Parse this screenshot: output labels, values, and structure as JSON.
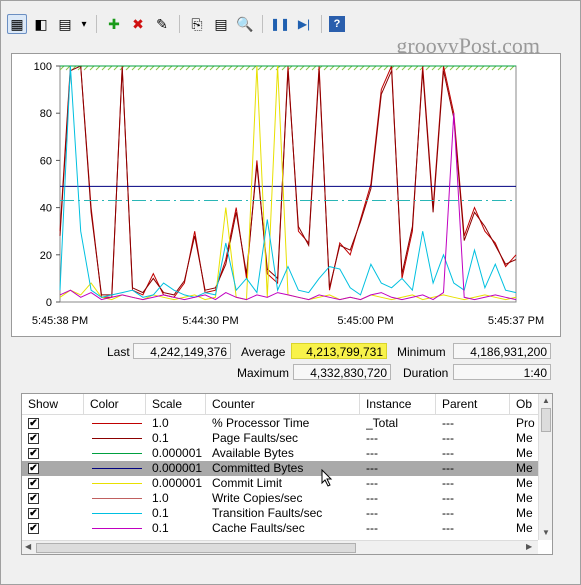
{
  "watermark": "groovyPost.com",
  "toolbar": {
    "buttons": [
      {
        "name": "view-graph-icon",
        "glyph": "▦"
      },
      {
        "name": "freeze-display-icon",
        "glyph": "◧"
      },
      {
        "name": "change-graph-type-icon",
        "glyph": "▤"
      },
      {
        "name": "dropdown-arrow-icon",
        "glyph": "▾"
      },
      {
        "name": "add-counter-icon",
        "glyph": "✚"
      },
      {
        "name": "delete-counter-icon",
        "glyph": "✖"
      },
      {
        "name": "highlight-icon",
        "glyph": "✎"
      },
      {
        "name": "copy-properties-icon",
        "glyph": "⎘"
      },
      {
        "name": "paste-counter-list-icon",
        "glyph": "▤"
      },
      {
        "name": "zoom-icon",
        "glyph": "🔍"
      },
      {
        "name": "pause-icon",
        "glyph": "❚❚"
      },
      {
        "name": "update-data-icon",
        "glyph": "▶|"
      },
      {
        "name": "help-icon",
        "glyph": "?"
      }
    ]
  },
  "chart_data": {
    "type": "line",
    "x_tick_labels": [
      "5:45:38 PM",
      "5:44:30 PM",
      "5:45:00 PM",
      "5:45:37 PM"
    ],
    "y_tick_labels": [
      "100",
      "80",
      "60",
      "40",
      "20",
      "0"
    ],
    "ylim": [
      0,
      100
    ],
    "series": [
      {
        "color": "#c00000",
        "values": [
          30,
          100,
          100,
          40,
          2,
          2,
          100,
          5,
          3,
          12,
          3,
          2,
          8,
          30,
          4,
          5,
          18,
          40,
          10,
          60,
          12,
          8,
          100,
          30,
          25,
          100,
          5,
          25,
          20,
          35,
          50,
          90,
          100,
          10,
          30,
          100,
          40,
          100,
          80,
          28,
          40,
          30,
          25,
          15,
          20
        ]
      },
      {
        "color": "#8b0000",
        "values": [
          28,
          98,
          100,
          38,
          3,
          3,
          99,
          6,
          4,
          10,
          4,
          3,
          9,
          28,
          5,
          6,
          16,
          38,
          12,
          58,
          14,
          10,
          98,
          32,
          24,
          98,
          6,
          24,
          22,
          34,
          48,
          88,
          98,
          12,
          32,
          98,
          38,
          98,
          78,
          26,
          38,
          32,
          24,
          16,
          18
        ]
      },
      {
        "color": "#00a040",
        "values": [
          100,
          100,
          100,
          100,
          100,
          100,
          100,
          100,
          100,
          100,
          100,
          100,
          100,
          100,
          100,
          100,
          100,
          100,
          100,
          100,
          100,
          100,
          100,
          100,
          100,
          100,
          100,
          100,
          100,
          100,
          100,
          100,
          100,
          100,
          100,
          100,
          100,
          100,
          100,
          100,
          100,
          100,
          100,
          100,
          100
        ]
      },
      {
        "color": "#000080",
        "values": [
          49,
          49,
          49,
          49,
          49,
          49,
          49,
          49,
          49,
          49,
          49,
          49,
          49,
          49,
          49,
          49,
          49,
          49,
          49,
          49,
          49,
          49,
          49,
          49,
          49,
          49,
          49,
          49,
          49,
          49,
          49,
          49,
          49,
          49,
          49,
          49,
          49,
          49,
          49,
          49,
          49,
          49,
          49,
          49,
          49
        ]
      },
      {
        "color": "#2ab6b6",
        "values": [
          43,
          43,
          43,
          43,
          43,
          43,
          43,
          43,
          43,
          43,
          43,
          43,
          43,
          43,
          43,
          43,
          43,
          43,
          43,
          43,
          43,
          43,
          43,
          43,
          43,
          43,
          43,
          43,
          43,
          43,
          43,
          43,
          43,
          43,
          43,
          43,
          43,
          43,
          43,
          43,
          43,
          43,
          43,
          43,
          43
        ]
      },
      {
        "color": "#e8e000",
        "values": [
          2,
          5,
          3,
          8,
          2,
          1,
          3,
          2,
          1,
          3,
          2,
          1,
          2,
          3,
          1,
          2,
          40,
          2,
          1,
          100,
          2,
          100,
          3,
          2,
          1,
          2,
          3,
          1,
          2,
          1,
          3,
          2,
          1,
          2,
          3,
          1,
          2,
          3,
          2,
          1,
          2,
          3,
          2,
          1,
          2
        ]
      },
      {
        "color": "#00c0e0",
        "values": [
          5,
          100,
          30,
          5,
          2,
          3,
          4,
          5,
          2,
          3,
          8,
          5,
          3,
          2,
          4,
          3,
          25,
          5,
          10,
          4,
          35,
          5,
          15,
          5,
          4,
          10,
          15,
          14,
          6,
          3,
          16,
          8,
          6,
          10,
          5,
          30,
          8,
          20,
          8,
          5,
          22,
          6,
          16,
          5,
          4
        ]
      },
      {
        "color": "#c000c0",
        "values": [
          3,
          5,
          2,
          4,
          1,
          2,
          3,
          2,
          1,
          2,
          3,
          2,
          1,
          2,
          3,
          1,
          4,
          2,
          1,
          3,
          2,
          4,
          3,
          2,
          1,
          3,
          2,
          1,
          2,
          1,
          3,
          4,
          2,
          1,
          2,
          3,
          1,
          4,
          80,
          2,
          1,
          2,
          3,
          2,
          1
        ]
      }
    ]
  },
  "stats": {
    "last_label": "Last",
    "last_value": "4,242,149,376",
    "average_label": "Average",
    "average_value": "4,213,799,731",
    "minimum_label": "Minimum",
    "minimum_value": "4,186,931,200",
    "maximum_label": "Maximum",
    "maximum_value": "4,332,830,720",
    "duration_label": "Duration",
    "duration_value": "1:40"
  },
  "counter_list": {
    "headers": [
      "Show",
      "Color",
      "Scale",
      "Counter",
      "Instance",
      "Parent",
      "Ob"
    ],
    "rows": [
      {
        "scale": "1.0",
        "counter": "% Processor Time",
        "instance": "_Total",
        "parent": "---",
        "object": "Pro",
        "color": "#c00000",
        "selected": false
      },
      {
        "scale": "0.1",
        "counter": "Page Faults/sec",
        "instance": "---",
        "parent": "---",
        "object": "Me",
        "color": "#8b0000",
        "selected": false
      },
      {
        "scale": "0.000001",
        "counter": "Available Bytes",
        "instance": "---",
        "parent": "---",
        "object": "Me",
        "color": "#00a040",
        "selected": false
      },
      {
        "scale": "0.000001",
        "counter": "Committed Bytes",
        "instance": "---",
        "parent": "---",
        "object": "Me",
        "color": "#000080",
        "selected": true
      },
      {
        "scale": "0.000001",
        "counter": "Commit Limit",
        "instance": "---",
        "parent": "---",
        "object": "Me",
        "color": "#e8e000",
        "selected": false
      },
      {
        "scale": "1.0",
        "counter": "Write Copies/sec",
        "instance": "---",
        "parent": "---",
        "object": "Me",
        "color": "#c06060",
        "selected": false
      },
      {
        "scale": "0.1",
        "counter": "Transition Faults/sec",
        "instance": "---",
        "parent": "---",
        "object": "Me",
        "color": "#00c0e0",
        "selected": false
      },
      {
        "scale": "0.1",
        "counter": "Cache Faults/sec",
        "instance": "---",
        "parent": "---",
        "object": "Me",
        "color": "#c000c0",
        "selected": false
      }
    ]
  }
}
